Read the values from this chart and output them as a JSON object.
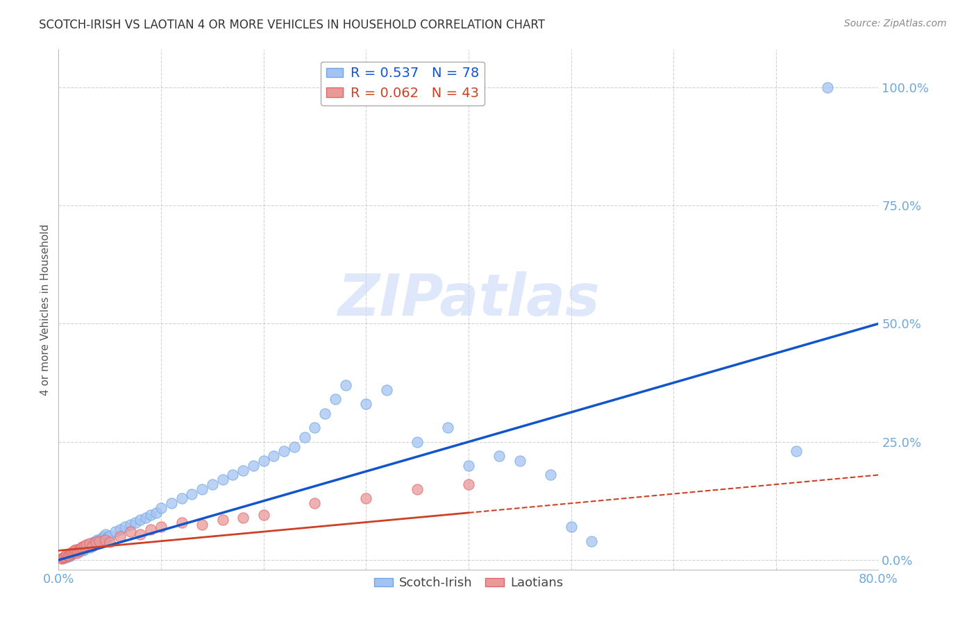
{
  "title": "SCOTCH-IRISH VS LAOTIAN 4 OR MORE VEHICLES IN HOUSEHOLD CORRELATION CHART",
  "source": "Source: ZipAtlas.com",
  "ylabel": "4 or more Vehicles in Household",
  "ytick_labels": [
    "0.0%",
    "25.0%",
    "50.0%",
    "75.0%",
    "100.0%"
  ],
  "ytick_values": [
    0.0,
    0.25,
    0.5,
    0.75,
    1.0
  ],
  "xlim": [
    0.0,
    0.8
  ],
  "ylim": [
    -0.02,
    1.08
  ],
  "scotch_irish_R": 0.537,
  "scotch_irish_N": 78,
  "laotian_R": 0.062,
  "laotian_N": 43,
  "scotch_irish_color": "#a4c2f4",
  "scotch_irish_edge_color": "#6fa8dc",
  "scotch_irish_line_color": "#1155cc",
  "laotian_color": "#ea9999",
  "laotian_edge_color": "#e06666",
  "laotian_line_color": "#cc4125",
  "laotian_line_dash_color": "#cc4125",
  "watermark_color": "#c9daf8",
  "background_color": "#ffffff",
  "grid_color": "#c0c0c0",
  "title_color": "#333333",
  "axis_label_color": "#6fa8dc",
  "scotch_irish_x": [
    0.005,
    0.007,
    0.008,
    0.009,
    0.01,
    0.011,
    0.012,
    0.013,
    0.014,
    0.015,
    0.016,
    0.017,
    0.018,
    0.019,
    0.02,
    0.021,
    0.022,
    0.023,
    0.024,
    0.025,
    0.026,
    0.027,
    0.028,
    0.029,
    0.03,
    0.031,
    0.032,
    0.033,
    0.034,
    0.035,
    0.036,
    0.038,
    0.04,
    0.042,
    0.044,
    0.046,
    0.048,
    0.05,
    0.055,
    0.06,
    0.065,
    0.07,
    0.075,
    0.08,
    0.085,
    0.09,
    0.095,
    0.1,
    0.11,
    0.12,
    0.13,
    0.14,
    0.15,
    0.16,
    0.17,
    0.18,
    0.19,
    0.2,
    0.21,
    0.22,
    0.23,
    0.24,
    0.25,
    0.26,
    0.27,
    0.28,
    0.3,
    0.32,
    0.35,
    0.38,
    0.4,
    0.43,
    0.45,
    0.48,
    0.5,
    0.52,
    0.72,
    0.75
  ],
  "scotch_irish_y": [
    0.005,
    0.008,
    0.006,
    0.01,
    0.012,
    0.009,
    0.011,
    0.013,
    0.015,
    0.014,
    0.016,
    0.018,
    0.02,
    0.017,
    0.022,
    0.019,
    0.023,
    0.025,
    0.021,
    0.024,
    0.026,
    0.03,
    0.028,
    0.032,
    0.027,
    0.031,
    0.035,
    0.033,
    0.038,
    0.036,
    0.04,
    0.042,
    0.038,
    0.045,
    0.05,
    0.055,
    0.048,
    0.052,
    0.06,
    0.065,
    0.07,
    0.075,
    0.08,
    0.085,
    0.09,
    0.095,
    0.1,
    0.11,
    0.12,
    0.13,
    0.14,
    0.15,
    0.16,
    0.17,
    0.18,
    0.19,
    0.2,
    0.21,
    0.22,
    0.23,
    0.24,
    0.26,
    0.28,
    0.31,
    0.34,
    0.37,
    0.33,
    0.36,
    0.25,
    0.28,
    0.2,
    0.22,
    0.21,
    0.18,
    0.07,
    0.04,
    0.23,
    1.0
  ],
  "laotian_x": [
    0.003,
    0.004,
    0.005,
    0.006,
    0.007,
    0.008,
    0.009,
    0.01,
    0.011,
    0.012,
    0.013,
    0.014,
    0.015,
    0.016,
    0.017,
    0.018,
    0.019,
    0.02,
    0.021,
    0.022,
    0.023,
    0.025,
    0.027,
    0.03,
    0.033,
    0.036,
    0.04,
    0.045,
    0.05,
    0.06,
    0.07,
    0.08,
    0.09,
    0.1,
    0.12,
    0.14,
    0.16,
    0.18,
    0.2,
    0.25,
    0.3,
    0.35,
    0.4
  ],
  "laotian_y": [
    0.003,
    0.005,
    0.006,
    0.008,
    0.01,
    0.012,
    0.009,
    0.011,
    0.014,
    0.013,
    0.016,
    0.018,
    0.02,
    0.017,
    0.022,
    0.015,
    0.019,
    0.023,
    0.021,
    0.025,
    0.028,
    0.03,
    0.032,
    0.035,
    0.03,
    0.038,
    0.04,
    0.042,
    0.038,
    0.05,
    0.06,
    0.055,
    0.065,
    0.07,
    0.08,
    0.075,
    0.085,
    0.09,
    0.095,
    0.12,
    0.13,
    0.15,
    0.16
  ],
  "si_line_x0": 0.0,
  "si_line_y0": 0.0,
  "si_line_x1": 0.8,
  "si_line_y1": 0.5,
  "la_line_x0": 0.0,
  "la_line_y0": 0.02,
  "la_line_x1": 0.8,
  "la_line_y1": 0.18
}
